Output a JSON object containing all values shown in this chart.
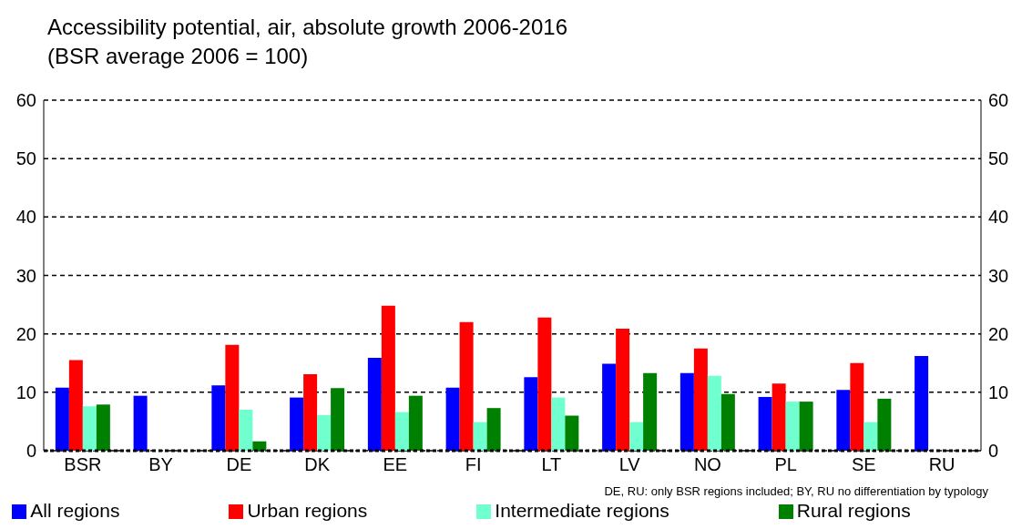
{
  "chart_data": {
    "type": "bar",
    "title": "Accessibility potential, air, absolute growth 2006-2016",
    "subtitle": "(BSR average 2006 = 100)",
    "categories": [
      "BSR",
      "BY",
      "DE",
      "DK",
      "EE",
      "FI",
      "LT",
      "LV",
      "NO",
      "PL",
      "SE",
      "RU"
    ],
    "series": [
      {
        "name": "All regions",
        "color": "#0000ff",
        "values": [
          10.8,
          9.4,
          11.2,
          9.1,
          15.9,
          10.8,
          12.6,
          14.9,
          13.3,
          9.2,
          10.4,
          16.2
        ]
      },
      {
        "name": "Urban regions",
        "color": "#ff0000",
        "values": [
          15.5,
          null,
          18.1,
          13.1,
          24.8,
          22.0,
          22.8,
          20.9,
          17.5,
          11.5,
          15.0,
          null
        ]
      },
      {
        "name": "Intermediate regions",
        "color": "#70ffcf",
        "values": [
          7.6,
          null,
          7.0,
          6.1,
          6.6,
          4.9,
          9.1,
          4.9,
          12.8,
          8.4,
          4.9,
          null
        ]
      },
      {
        "name": "Rural regions",
        "color": "#008000",
        "values": [
          7.9,
          null,
          1.6,
          10.7,
          9.4,
          7.3,
          6.0,
          13.3,
          9.7,
          8.4,
          8.9,
          null
        ]
      }
    ],
    "ylim": [
      0,
      60
    ],
    "yticks": [
      0,
      10,
      20,
      30,
      40,
      50,
      60
    ],
    "y2lim": [
      0,
      60
    ],
    "y2ticks": [
      0,
      10,
      20,
      30,
      40,
      50,
      60
    ],
    "grid": "y",
    "legend": "bottom",
    "annotations": [
      "DE, RU: only BSR regions included; BY, RU no differentiation by typology"
    ]
  }
}
